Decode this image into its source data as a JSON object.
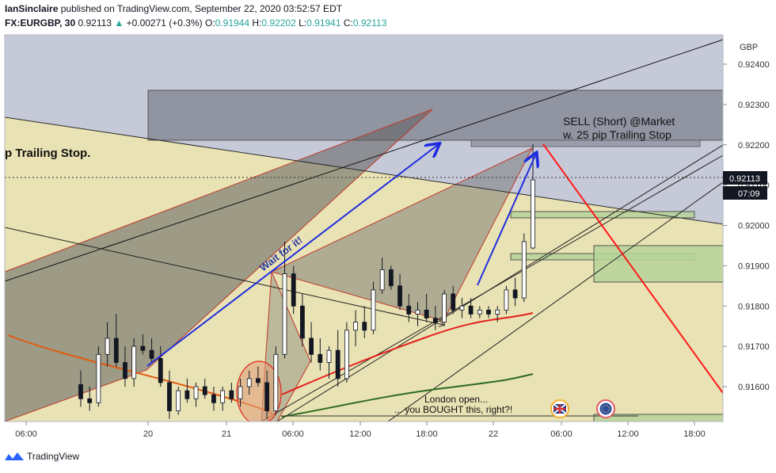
{
  "header": {
    "author": "IanSinclaire",
    "published_text": "published on TradingView.com, September 22, 2020 03:52:57 EDT",
    "symbol": "FX:EURGBP, 30",
    "last": "0.92113",
    "change": "+0.00271 (+0.3%)",
    "o_label": "O:",
    "o": "0.91944",
    "h_label": "H:",
    "h": "0.92202",
    "l_label": "L:",
    "l": "0.91941",
    "c_label": "C:",
    "c": "0.92113"
  },
  "footer": {
    "brand": "TradingView"
  },
  "colors": {
    "up": "#ffffff",
    "down": "#131722",
    "accent_green": "#26a69a",
    "price_tag": "#131722",
    "ema_short": "#e3211c",
    "ema_mid": "#2e6b1f",
    "ema_long": "#e25a10",
    "arrow": "#1f2de0",
    "sell_line": "#ff1a1a"
  },
  "chart_data": {
    "type": "candlestick",
    "currency": "GBP",
    "last_price_label": "0.92113",
    "countdown_label": "07:09",
    "price_ticks": [
      "0.92400",
      "0.92300",
      "0.92200",
      "0.92100",
      "0.92000",
      "0.91900",
      "0.91800",
      "0.91700",
      "0.91600"
    ],
    "time_ticks": [
      "06:00",
      "20",
      "21",
      "06:00",
      "12:00",
      "18:00",
      "22",
      "06:00",
      "12:00",
      "18:00"
    ],
    "annotations": {
      "sell_line1": "SELL (Short) @Market",
      "sell_line2": "w. 25 pip Trailing Stop",
      "left_text": "p Trailing Stop.",
      "wait_text": "Wait for it!",
      "london_line1": "London open...",
      "london_line2": "... you BOUGHT this, right?!"
    },
    "candles_ohlc": [
      [
        0.91605,
        0.9164,
        0.9155,
        0.9157
      ],
      [
        0.9157,
        0.916,
        0.9154,
        0.9156
      ],
      [
        0.9156,
        0.917,
        0.9155,
        0.9168
      ],
      [
        0.9168,
        0.9176,
        0.9165,
        0.9172
      ],
      [
        0.9172,
        0.9178,
        0.9165,
        0.9166
      ],
      [
        0.9166,
        0.917,
        0.916,
        0.9162
      ],
      [
        0.9162,
        0.9172,
        0.916,
        0.917
      ],
      [
        0.917,
        0.9173,
        0.9168,
        0.9169
      ],
      [
        0.9169,
        0.9172,
        0.9166,
        0.9167
      ],
      [
        0.9167,
        0.917,
        0.916,
        0.9161
      ],
      [
        0.9161,
        0.9164,
        0.9152,
        0.9154
      ],
      [
        0.9154,
        0.916,
        0.9153,
        0.9159
      ],
      [
        0.9159,
        0.9162,
        0.9156,
        0.9157
      ],
      [
        0.9157,
        0.9161,
        0.9155,
        0.916
      ],
      [
        0.916,
        0.9162,
        0.9157,
        0.9158
      ],
      [
        0.9158,
        0.916,
        0.9154,
        0.9156
      ],
      [
        0.9156,
        0.916,
        0.9154,
        0.9159
      ],
      [
        0.9159,
        0.9161,
        0.9156,
        0.9157
      ],
      [
        0.9157,
        0.9162,
        0.9155,
        0.916
      ],
      [
        0.916,
        0.9164,
        0.9158,
        0.9162
      ],
      [
        0.9162,
        0.9165,
        0.916,
        0.9161
      ],
      [
        0.9161,
        0.9164,
        0.9152,
        0.9154
      ],
      [
        0.9154,
        0.917,
        0.9153,
        0.9168
      ],
      [
        0.9168,
        0.9196,
        0.9167,
        0.9188
      ],
      [
        0.9188,
        0.919,
        0.9178,
        0.918
      ],
      [
        0.918,
        0.9183,
        0.917,
        0.9172
      ],
      [
        0.9172,
        0.9176,
        0.9166,
        0.9168
      ],
      [
        0.9168,
        0.9172,
        0.9164,
        0.9166
      ],
      [
        0.9166,
        0.917,
        0.9162,
        0.9169
      ],
      [
        0.9169,
        0.9174,
        0.916,
        0.9162
      ],
      [
        0.9162,
        0.9176,
        0.9161,
        0.9174
      ],
      [
        0.9174,
        0.9179,
        0.917,
        0.9176
      ],
      [
        0.9176,
        0.918,
        0.9172,
        0.9174
      ],
      [
        0.9174,
        0.9186,
        0.9173,
        0.9184
      ],
      [
        0.9184,
        0.9192,
        0.9183,
        0.9189
      ],
      [
        0.9189,
        0.919,
        0.9184,
        0.9185
      ],
      [
        0.9185,
        0.9188,
        0.9179,
        0.918
      ],
      [
        0.918,
        0.9183,
        0.9176,
        0.9178
      ],
      [
        0.9178,
        0.9181,
        0.9175,
        0.9179
      ],
      [
        0.9179,
        0.9183,
        0.9176,
        0.9177
      ],
      [
        0.9177,
        0.918,
        0.9174,
        0.9176
      ],
      [
        0.9176,
        0.9184,
        0.9175,
        0.9183
      ],
      [
        0.9183,
        0.9185,
        0.9178,
        0.9179
      ],
      [
        0.9179,
        0.9182,
        0.9177,
        0.918
      ],
      [
        0.918,
        0.9182,
        0.9177,
        0.9178
      ],
      [
        0.9178,
        0.918,
        0.9177,
        0.9179
      ],
      [
        0.9179,
        0.918,
        0.9177,
        0.9178
      ],
      [
        0.9178,
        0.918,
        0.9176,
        0.9179
      ],
      [
        0.9179,
        0.9185,
        0.9178,
        0.9184
      ],
      [
        0.9184,
        0.9187,
        0.918,
        0.9182
      ],
      [
        0.9182,
        0.9198,
        0.9181,
        0.9196
      ],
      [
        0.91944,
        0.92202,
        0.91941,
        0.92113
      ]
    ]
  }
}
